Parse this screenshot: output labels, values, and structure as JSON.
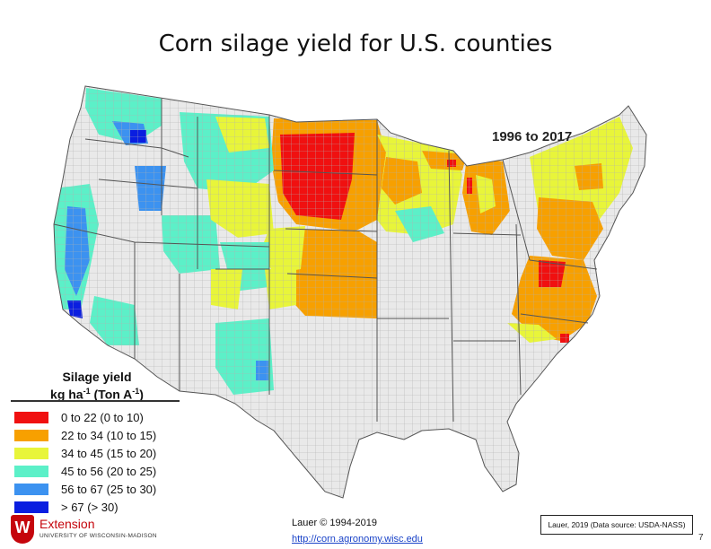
{
  "title": "Corn silage yield for U.S. counties",
  "period": "1996 to 2017",
  "legend": {
    "title_line1": "Silage yield",
    "title_line2": "kg ha",
    "title_sup1": "-1",
    "title_mid": " (Ton A",
    "title_sup2": "-1",
    "title_end": ")",
    "items": [
      {
        "label": "0 to 22 (0 to 10)",
        "color": "#f01010"
      },
      {
        "label": "22 to 34 (10 to 15)",
        "color": "#f7a000"
      },
      {
        "label": "34 to 45 (15 to 20)",
        "color": "#e8f53a"
      },
      {
        "label": "45 to 56 (20 to 25)",
        "color": "#5cf0c8"
      },
      {
        "label": "56 to 67 (25 to 30)",
        "color": "#3c92f0"
      },
      {
        "label": "> 67 (> 30)",
        "color": "#0a1ee0"
      }
    ]
  },
  "footer": {
    "credit": "Lauer © 1994-2019",
    "link": "http://corn.agronomy.wisc.edu",
    "source": "Lauer, 2019 (Data source: USDA-NASS)",
    "page": "7"
  },
  "logo": {
    "shield_letter": "W",
    "name": "Extension",
    "university": "UNIVERSITY OF WISCONSIN-MADISON"
  },
  "colors": {
    "no_data": "#e9e9e9",
    "county_line": "#9a9a9a",
    "state_line": "#555555"
  }
}
